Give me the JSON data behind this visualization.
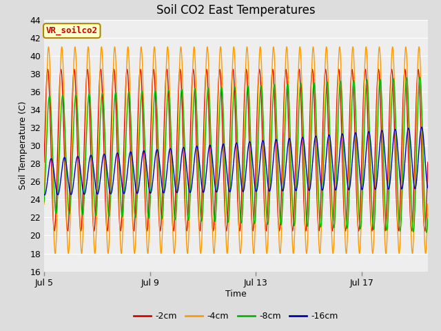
{
  "title": "Soil CO2 East Temperatures",
  "xlabel": "Time",
  "ylabel": "Soil Temperature (C)",
  "ylim": [
    16,
    44
  ],
  "yticks": [
    16,
    18,
    20,
    22,
    24,
    26,
    28,
    30,
    32,
    34,
    36,
    38,
    40,
    42,
    44
  ],
  "xtick_labels": [
    "Jul 5",
    "Jul 9",
    "Jul 13",
    "Jul 17"
  ],
  "xtick_days": [
    0,
    4,
    8,
    12
  ],
  "xlim_days": 14.5,
  "series": [
    {
      "label": "-2cm",
      "color": "#dd0000",
      "mean": 29.5,
      "amplitude": 9.0,
      "phase": 0.15,
      "cycles_per_day": 2,
      "trend_amp": 0.0,
      "trend_mean": 0.0
    },
    {
      "label": "-4cm",
      "color": "#ff9900",
      "mean": 29.5,
      "amplitude": 11.5,
      "phase": 0.55,
      "cycles_per_day": 2,
      "trend_amp": 0.0,
      "trend_mean": 0.0
    },
    {
      "label": "-8cm",
      "color": "#00bb00",
      "mean": 29.0,
      "amplitude": 6.5,
      "phase": 0.95,
      "cycles_per_day": 2,
      "trend_amp": 0.15,
      "trend_mean": 0.0
    },
    {
      "label": "-16cm",
      "color": "#0000bb",
      "mean": 26.5,
      "amplitude": 2.0,
      "phase": 1.8,
      "cycles_per_day": 2,
      "trend_amp": 0.1,
      "trend_mean": 0.15
    }
  ],
  "legend_label": "VR_soilco2",
  "legend_bbox_facecolor": "#ffffcc",
  "legend_bbox_edgecolor": "#aa8800",
  "bg_color": "#dddddd",
  "plot_bg_color": "#eeeeee",
  "title_fontsize": 12,
  "axis_label_fontsize": 9,
  "tick_fontsize": 9,
  "legend_fontsize": 9,
  "samples_per_day": 200
}
